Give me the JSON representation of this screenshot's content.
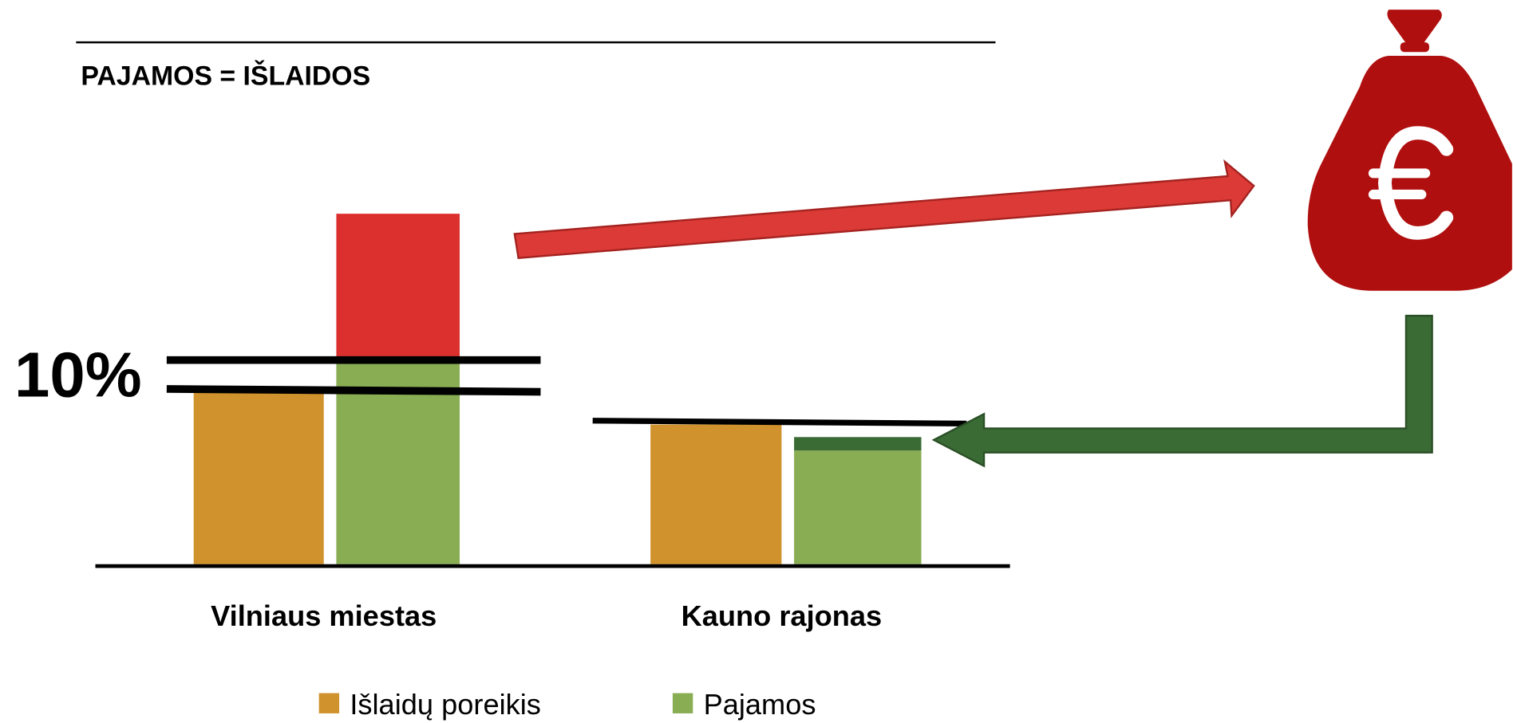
{
  "header": {
    "title": "PAJAMOS = IŠLAIDOS"
  },
  "annotation": "10%",
  "categories": [
    "Vilniaus miestas",
    "Kauno rajonas"
  ],
  "legend": [
    {
      "name": "Išlaidų poreikis",
      "color": "#d0922c"
    },
    {
      "name": "Pajamos",
      "color": "#88ad53"
    }
  ]
}
